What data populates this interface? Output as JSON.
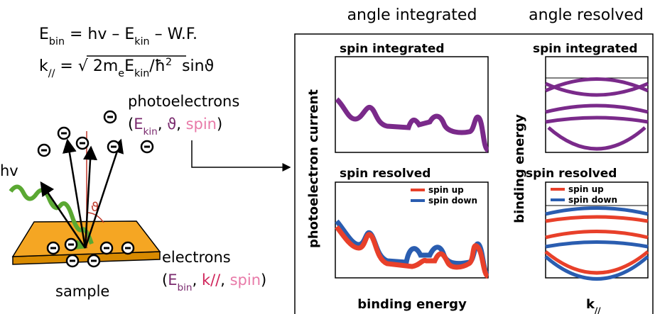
{
  "left": {
    "energy_equation": [
      {
        "text": "E"
      },
      {
        "text": "bin",
        "style": "sub"
      },
      {
        "text": " = hv – E"
      },
      {
        "text": "kin",
        "style": "sub"
      },
      {
        "text": " – W.F."
      }
    ],
    "momentum_equation": [
      {
        "text": "k"
      },
      {
        "text": "//",
        "style": "sub"
      },
      {
        "text": " = √ "
      },
      {
        "text": "2m"
      },
      {
        "text": "e",
        "style": "sub"
      },
      {
        "text": "E"
      },
      {
        "text": "kin",
        "style": "sub"
      },
      {
        "text": "/ħ"
      },
      {
        "text": "2",
        "style": "sup"
      },
      {
        "text": "  sin"
      },
      {
        "text": "ϑ"
      }
    ],
    "photoelectrons_label": "photoelectrons",
    "photoelectrons_props": [
      {
        "text": "("
      },
      {
        "text": "E",
        "color": "#7a2a6e"
      },
      {
        "text": "kin",
        "style": "sub",
        "color": "#7a2a6e"
      },
      {
        "text": ", "
      },
      {
        "text": "ϑ",
        "color": "#7a2a6e"
      },
      {
        "text": ", "
      },
      {
        "text": "spin",
        "color": "#e87aa8"
      },
      {
        "text": ")"
      }
    ],
    "photon_label": "hv",
    "angle_label": "ϑ",
    "electrons_label": "electrons",
    "electrons_props": [
      {
        "text": "("
      },
      {
        "text": "E",
        "color": "#7a2a6e"
      },
      {
        "text": "bin",
        "style": "sub",
        "color": "#7a2a6e"
      },
      {
        "text": ", "
      },
      {
        "text": "k//",
        "color": "#d0245a"
      },
      {
        "text": ", "
      },
      {
        "text": "spin",
        "color": "#e87aa8"
      },
      {
        "text": ")"
      }
    ],
    "sample_label": "sample"
  },
  "right": {
    "headers": [
      "angle integrated",
      "angle resolved"
    ],
    "panel_titles": [
      "spin integrated",
      "spin resolved",
      "spin integrated",
      "spin resolved"
    ],
    "legend": [
      "spin up",
      "spin down"
    ],
    "y_labels": [
      "photoelectron current",
      "binding energy"
    ],
    "x_label_energy": "binding energy",
    "x_label_k": [
      {
        "text": "k"
      },
      {
        "text": "//",
        "style": "sub"
      }
    ]
  }
}
